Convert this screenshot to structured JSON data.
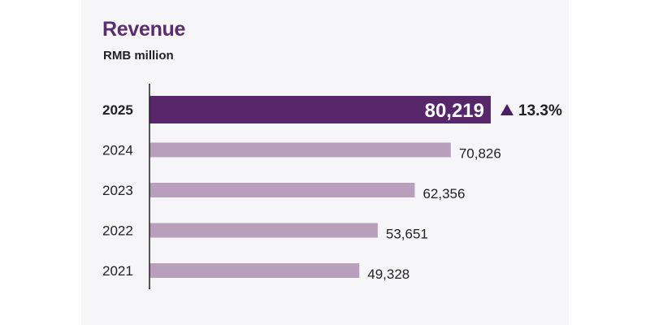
{
  "chart_data": {
    "type": "bar",
    "orientation": "horizontal",
    "title": "Revenue",
    "subtitle": "RMB million",
    "categories": [
      "2025",
      "2024",
      "2023",
      "2022",
      "2021"
    ],
    "values": [
      80219,
      70826,
      62356,
      53651,
      49328
    ],
    "value_labels": [
      "80,219",
      "70,826",
      "62,356",
      "53,651",
      "49,328"
    ],
    "highlight_category": "2025",
    "highlight_change": "13.3%",
    "highlight_change_direction": "up",
    "grid": false,
    "xlim": [
      0,
      80219
    ]
  },
  "colors": {
    "highlight_bar": "#57266b",
    "bar": "#b8a0bd",
    "axis": "#222222",
    "title": "#5b2c6f",
    "change_icon": "#4a1f63"
  }
}
